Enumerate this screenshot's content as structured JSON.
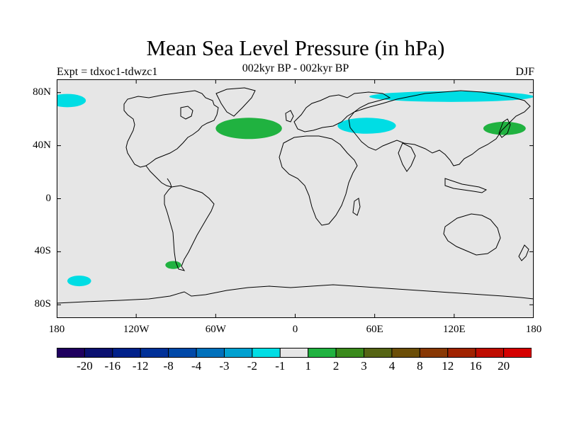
{
  "title": "Mean Sea Level Pressure (in hPa)",
  "subtitle_left": "Expt = tdxoc1-tdwzc1",
  "subtitle_center": "002kyr BP - 002kyr BP",
  "subtitle_right": "DJF",
  "lat_ticks": [
    {
      "label": "80N",
      "value": 80
    },
    {
      "label": "40N",
      "value": 40
    },
    {
      "label": "0",
      "value": 0
    },
    {
      "label": "40S",
      "value": -40
    },
    {
      "label": "80S",
      "value": -80
    }
  ],
  "lon_ticks": [
    {
      "label": "180",
      "value": -180
    },
    {
      "label": "120W",
      "value": -120
    },
    {
      "label": "60W",
      "value": -60
    },
    {
      "label": "0",
      "value": 0
    },
    {
      "label": "60E",
      "value": 60
    },
    {
      "label": "120E",
      "value": 120
    },
    {
      "label": "180",
      "value": 180
    }
  ],
  "colors": {
    "background": "#e6e6e6",
    "coastline": "#000000",
    "negative_anomaly": "#00dde4",
    "positive_anomaly": "#20b240"
  },
  "colorbar": {
    "colors": [
      "#1f005f",
      "#0a1070",
      "#00208a",
      "#003098",
      "#0048a8",
      "#0070bb",
      "#00a0d0",
      "#00dde4",
      "#e6e6e6",
      "#20b240",
      "#3a8a1c",
      "#556414",
      "#6b4e08",
      "#883804",
      "#a02200",
      "#bf0c00",
      "#d50000"
    ],
    "labels": [
      "-20",
      "-16",
      "-12",
      "-8",
      "-4",
      "-3",
      "-2",
      "-1",
      "1",
      "2",
      "3",
      "4",
      "8",
      "12",
      "16",
      "20"
    ]
  },
  "anomaly_regions": [
    {
      "name": "north-atlantic-positive",
      "sign": "positive",
      "lon": -35,
      "lat": 53,
      "rlon": 25,
      "rlat": 8
    },
    {
      "name": "north-pacific-positive",
      "sign": "positive",
      "lon": 158,
      "lat": 53,
      "rlon": 16,
      "rlat": 5
    },
    {
      "name": "south-pacific-positive",
      "sign": "positive",
      "lon": -92,
      "lat": -50,
      "rlon": 6,
      "rlat": 3
    },
    {
      "name": "arctic-siberia-negative",
      "sign": "negative",
      "lon": 118,
      "lat": 77,
      "rlon": 62,
      "rlat": 4
    },
    {
      "name": "arctic-canada-negative",
      "sign": "negative",
      "lon": -172,
      "lat": 74,
      "rlon": 14,
      "rlat": 5
    },
    {
      "name": "central-asia-negative",
      "sign": "negative",
      "lon": 54,
      "lat": 55,
      "rlon": 22,
      "rlat": 6
    },
    {
      "name": "south-pacific-negative",
      "sign": "negative",
      "lon": -163,
      "lat": -62,
      "rlon": 9,
      "rlat": 4
    }
  ]
}
